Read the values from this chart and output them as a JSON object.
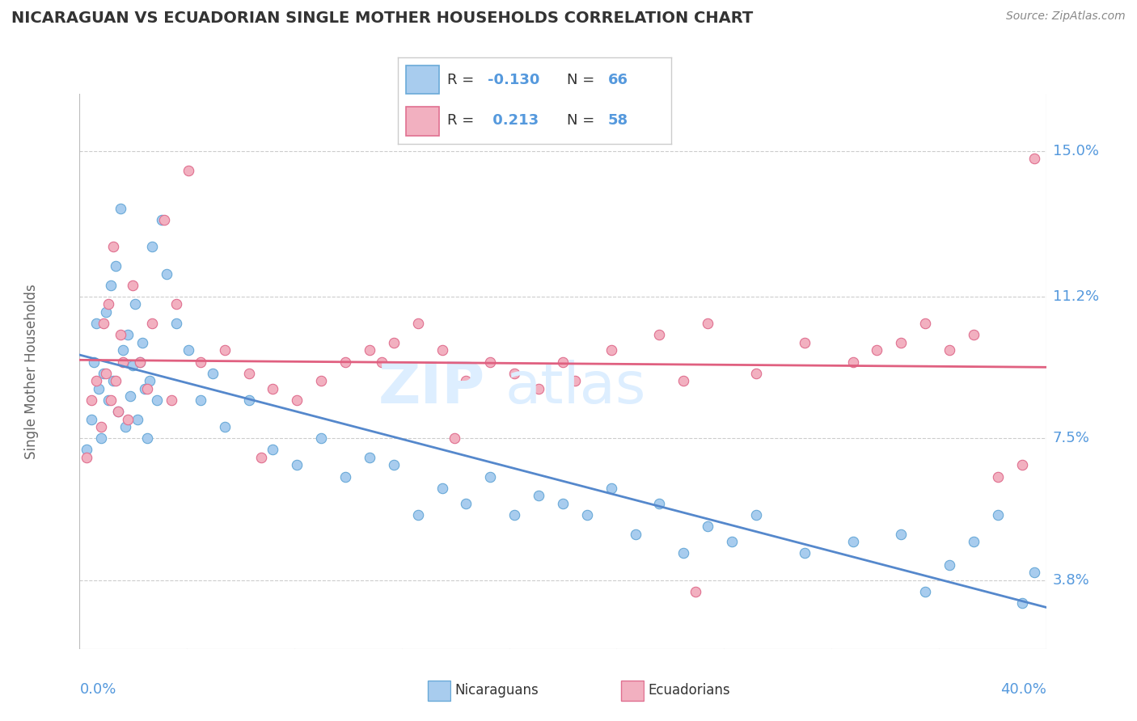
{
  "title": "NICARAGUAN VS ECUADORIAN SINGLE MOTHER HOUSEHOLDS CORRELATION CHART",
  "source": "Source: ZipAtlas.com",
  "ylabel": "Single Mother Households",
  "ytick_labels": [
    "3.8%",
    "7.5%",
    "11.2%",
    "15.0%"
  ],
  "ytick_vals": [
    3.8,
    7.5,
    11.2,
    15.0
  ],
  "xtick_left": "0.0%",
  "xtick_right": "40.0%",
  "xlim": [
    0.0,
    40.0
  ],
  "ylim": [
    2.0,
    16.5
  ],
  "R_nic": -0.13,
  "N_nic": 66,
  "R_ecu": 0.213,
  "N_ecu": 58,
  "color_nic_fill": "#A8CCEE",
  "color_nic_edge": "#6AAAD8",
  "color_ecu_fill": "#F2B0C0",
  "color_ecu_edge": "#E07090",
  "trendline_nic": "#5588CC",
  "trendline_ecu": "#E06080",
  "grid_color": "#CCCCCC",
  "title_color": "#333333",
  "axis_tick_color": "#5599DD",
  "legend_r_color": "#5599DD",
  "background": "#FFFFFF",
  "watermark_text": "ZIPatlas",
  "watermark_color": "#DDEEFF",
  "bottom_legend_nic": "Nicaraguans",
  "bottom_legend_ecu": "Ecuadorians",
  "nic_x": [
    0.3,
    0.5,
    0.6,
    0.7,
    0.8,
    0.9,
    1.0,
    1.1,
    1.2,
    1.3,
    1.4,
    1.5,
    1.6,
    1.7,
    1.8,
    1.9,
    2.0,
    2.1,
    2.2,
    2.3,
    2.4,
    2.5,
    2.6,
    2.7,
    2.8,
    2.9,
    3.0,
    3.2,
    3.4,
    3.6,
    4.0,
    4.5,
    5.0,
    5.5,
    6.0,
    7.0,
    8.0,
    9.0,
    10.0,
    11.0,
    12.0,
    13.0,
    14.0,
    15.0,
    16.0,
    17.0,
    18.0,
    19.0,
    20.0,
    21.0,
    22.0,
    23.0,
    24.0,
    25.0,
    26.0,
    27.0,
    28.0,
    30.0,
    32.0,
    34.0,
    35.0,
    36.0,
    37.0,
    38.0,
    39.0,
    39.5
  ],
  "nic_y": [
    7.2,
    8.0,
    9.5,
    10.5,
    8.8,
    7.5,
    9.2,
    10.8,
    8.5,
    11.5,
    9.0,
    12.0,
    8.2,
    13.5,
    9.8,
    7.8,
    10.2,
    8.6,
    9.4,
    11.0,
    8.0,
    9.5,
    10.0,
    8.8,
    7.5,
    9.0,
    12.5,
    8.5,
    13.2,
    11.8,
    10.5,
    9.8,
    8.5,
    9.2,
    7.8,
    8.5,
    7.2,
    6.8,
    7.5,
    6.5,
    7.0,
    6.8,
    5.5,
    6.2,
    5.8,
    6.5,
    5.5,
    6.0,
    5.8,
    5.5,
    6.2,
    5.0,
    5.8,
    4.5,
    5.2,
    4.8,
    5.5,
    4.5,
    4.8,
    5.0,
    3.5,
    4.2,
    4.8,
    5.5,
    3.2,
    4.0
  ],
  "ecu_x": [
    0.3,
    0.5,
    0.7,
    0.9,
    1.0,
    1.1,
    1.2,
    1.3,
    1.4,
    1.5,
    1.6,
    1.7,
    1.8,
    2.0,
    2.2,
    2.5,
    2.8,
    3.0,
    3.5,
    4.0,
    4.5,
    5.0,
    6.0,
    7.0,
    8.0,
    9.0,
    10.0,
    11.0,
    12.0,
    13.0,
    14.0,
    15.0,
    16.0,
    17.0,
    18.0,
    19.0,
    20.0,
    22.0,
    24.0,
    25.0,
    26.0,
    28.0,
    30.0,
    32.0,
    33.0,
    34.0,
    35.0,
    36.0,
    37.0,
    38.0,
    39.0,
    12.5,
    7.5,
    20.5,
    3.8,
    25.5,
    15.5,
    39.5
  ],
  "ecu_y": [
    7.0,
    8.5,
    9.0,
    7.8,
    10.5,
    9.2,
    11.0,
    8.5,
    12.5,
    9.0,
    8.2,
    10.2,
    9.5,
    8.0,
    11.5,
    9.5,
    8.8,
    10.5,
    13.2,
    11.0,
    14.5,
    9.5,
    9.8,
    9.2,
    8.8,
    8.5,
    9.0,
    9.5,
    9.8,
    10.0,
    10.5,
    9.8,
    9.0,
    9.5,
    9.2,
    8.8,
    9.5,
    9.8,
    10.2,
    9.0,
    10.5,
    9.2,
    10.0,
    9.5,
    9.8,
    10.0,
    10.5,
    9.8,
    10.2,
    6.5,
    6.8,
    9.5,
    7.0,
    9.0,
    8.5,
    3.5,
    7.5,
    14.8
  ]
}
